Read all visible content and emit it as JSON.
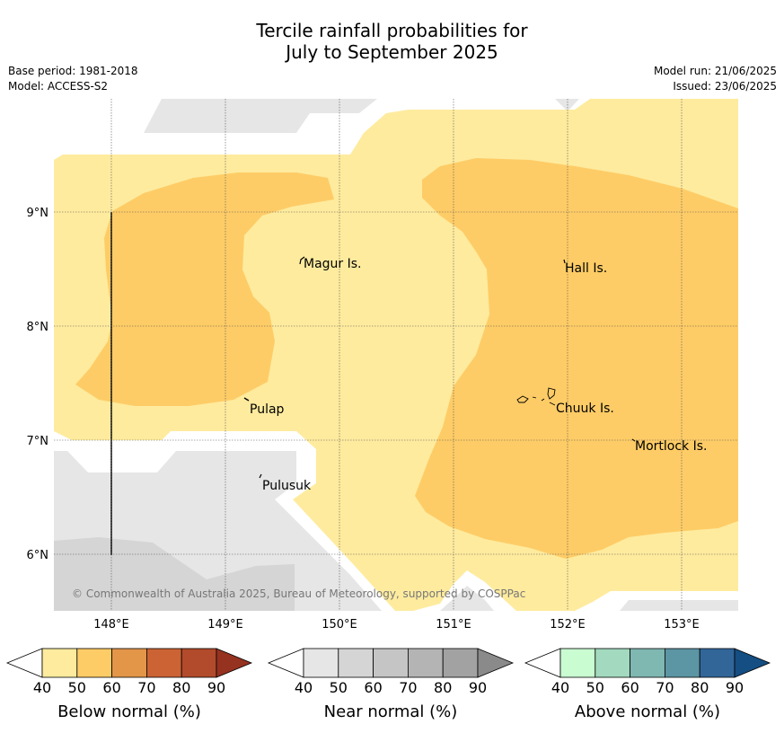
{
  "header": {
    "title_line1": "Tercile rainfall probabilities for",
    "title_line2": "July to September 2025",
    "base_period": "Base period: 1981-2018",
    "model": "Model: ACCESS-S2",
    "model_run": "Model run: 21/06/2025",
    "issued": "Issued: 23/06/2025"
  },
  "map": {
    "lat_ticks": [
      "9°N",
      "8°N",
      "7°N",
      "6°N"
    ],
    "lon_ticks": [
      "148°E",
      "149°E",
      "150°E",
      "151°E",
      "152°E",
      "153°E"
    ],
    "places": {
      "magur": "Magur Is.",
      "hall": "Hall Is.",
      "pulap": "Pulap",
      "chuuk": "Chuuk Is.",
      "mortlock": "Mortlock Is.",
      "pulusuk": "Pulusuk"
    },
    "copyright": "© Commonwealth of Australia 2025, Bureau of Meteorology, supported by COSPPac",
    "colors": {
      "below_40": "#feeb9e",
      "below_50": "#fecc66",
      "near_40": "#e6e6e6",
      "near_50": "#d5d5d5"
    }
  },
  "colorbars": {
    "below": {
      "label": "Below normal (%)",
      "ticks": [
        "40",
        "50",
        "60",
        "70",
        "80",
        "90"
      ],
      "colors": [
        "#feeb9e",
        "#fecc66",
        "#e39548",
        "#cb6334",
        "#b14b2b",
        "#963220"
      ]
    },
    "near": {
      "label": "Near normal (%)",
      "ticks": [
        "40",
        "50",
        "60",
        "70",
        "80",
        "90"
      ],
      "colors": [
        "#e6e6e6",
        "#d5d5d5",
        "#c5c5c5",
        "#b4b4b4",
        "#a2a2a2",
        "#8a8a8a"
      ]
    },
    "above": {
      "label": "Above normal (%)",
      "ticks": [
        "40",
        "50",
        "60",
        "70",
        "80",
        "90"
      ],
      "colors": [
        "#c9fdd1",
        "#a2d9bf",
        "#7fb7b1",
        "#5c95a3",
        "#326699",
        "#154e82"
      ]
    }
  }
}
